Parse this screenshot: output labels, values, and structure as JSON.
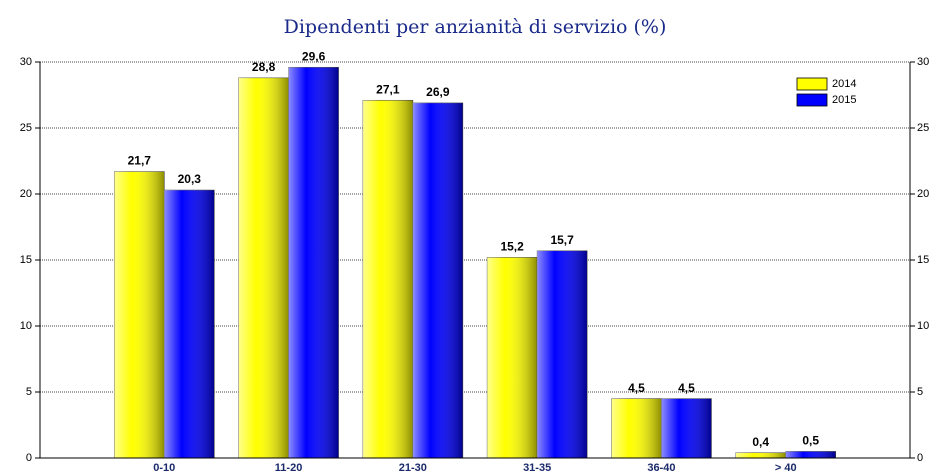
{
  "chart_data": {
    "type": "bar",
    "title": "Dipendenti per anzianità di servizio (%)",
    "categories": [
      "0-10",
      "11-20",
      "21-30",
      "31-35",
      "36-40",
      "> 40"
    ],
    "series": [
      {
        "name": "2014",
        "color": "#ffff00",
        "values": [
          21.7,
          28.8,
          27.1,
          15.2,
          4.5,
          0.4
        ],
        "value_labels": [
          "21,7",
          "28,8",
          "27,1",
          "15,2",
          "4,5",
          "0,4"
        ]
      },
      {
        "name": "2015",
        "color": "#0000ff",
        "values": [
          20.3,
          29.6,
          26.9,
          15.7,
          4.5,
          0.5
        ],
        "value_labels": [
          "20,3",
          "29,6",
          "26,9",
          "15,7",
          "4,5",
          "0,5"
        ]
      }
    ],
    "ylim": [
      0,
      30
    ],
    "yticks": [
      0,
      5,
      10,
      15,
      20,
      25,
      30
    ],
    "grid": true,
    "legend": "top-right"
  }
}
